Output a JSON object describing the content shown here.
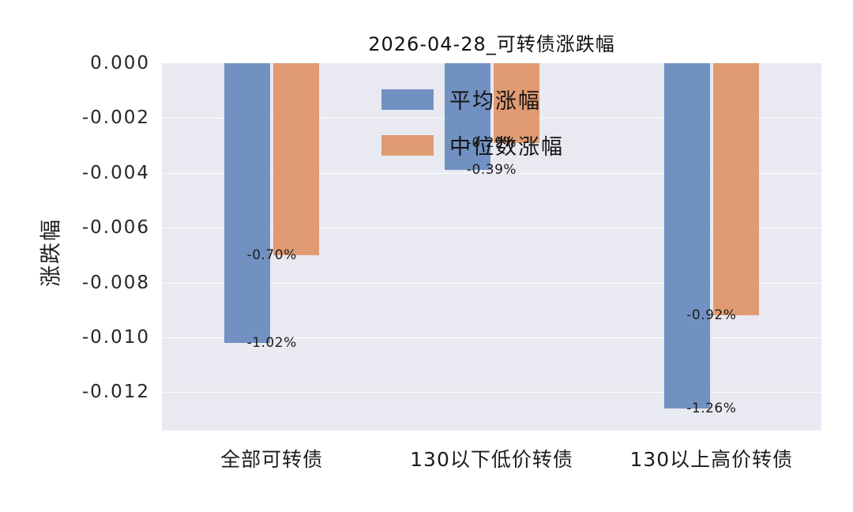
{
  "chart_data": {
    "type": "bar",
    "title": "2026-04-28_可转债涨跌幅",
    "ylabel": "涨跌幅",
    "xlabel": "",
    "categories": [
      "全部可转债",
      "130以下低价转债",
      "130以上高价转债"
    ],
    "series": [
      {
        "name": "平均涨幅",
        "color": "#7191c2",
        "values": [
          -0.0102,
          -0.0039,
          -0.0126
        ],
        "labels": [
          "-1.02%",
          "-0.39%",
          "-1.26%"
        ]
      },
      {
        "name": "中位数涨幅",
        "color": "#e19b73",
        "values": [
          -0.007,
          -0.0029,
          -0.0092
        ],
        "labels": [
          "-0.70%",
          "-0.29%",
          "-0.92%"
        ]
      }
    ],
    "ylim": [
      -0.0134,
      0
    ],
    "yticks": [
      0,
      -0.002,
      -0.004,
      -0.006,
      -0.008,
      -0.01,
      -0.012
    ],
    "ytick_labels": [
      "0.000",
      "-0.002",
      "-0.004",
      "-0.006",
      "-0.008",
      "-0.010",
      "-0.012"
    ],
    "grid": true,
    "legend_position": "upper center",
    "colors": {
      "plot_background": "#e9e9f1",
      "figure_background": "#ffffff",
      "text": "#1c1c1c"
    }
  }
}
